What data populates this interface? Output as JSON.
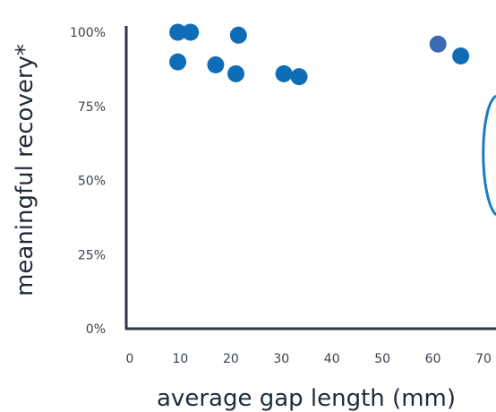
{
  "chart_data": {
    "type": "scatter",
    "title": "",
    "xlabel": "average gap length (mm)",
    "ylabel": "meaningful recovery*",
    "xlim": [
      0,
      70
    ],
    "ylim": [
      0,
      100
    ],
    "x_ticks": [
      "0",
      "10",
      "20",
      "30",
      "40",
      "50",
      "60",
      "70"
    ],
    "y_ticks": [
      "0%",
      "25%",
      "50%",
      "75%",
      "100%"
    ],
    "grid": false,
    "colors": {
      "point": "#0f6db8",
      "point_alt": "#3c6bb5",
      "axis": "#2f3645",
      "text": "#3a4150",
      "annotation_arc": "#1c7bc6"
    },
    "points": [
      {
        "x": 9.5,
        "y": 100
      },
      {
        "x": 12,
        "y": 100
      },
      {
        "x": 21.5,
        "y": 99
      },
      {
        "x": 9.5,
        "y": 90
      },
      {
        "x": 17,
        "y": 89
      },
      {
        "x": 21,
        "y": 86
      },
      {
        "x": 30.5,
        "y": 86
      },
      {
        "x": 33.5,
        "y": 85
      },
      {
        "x": 61,
        "y": 96,
        "alt": true
      },
      {
        "x": 65.5,
        "y": 92
      }
    ]
  }
}
